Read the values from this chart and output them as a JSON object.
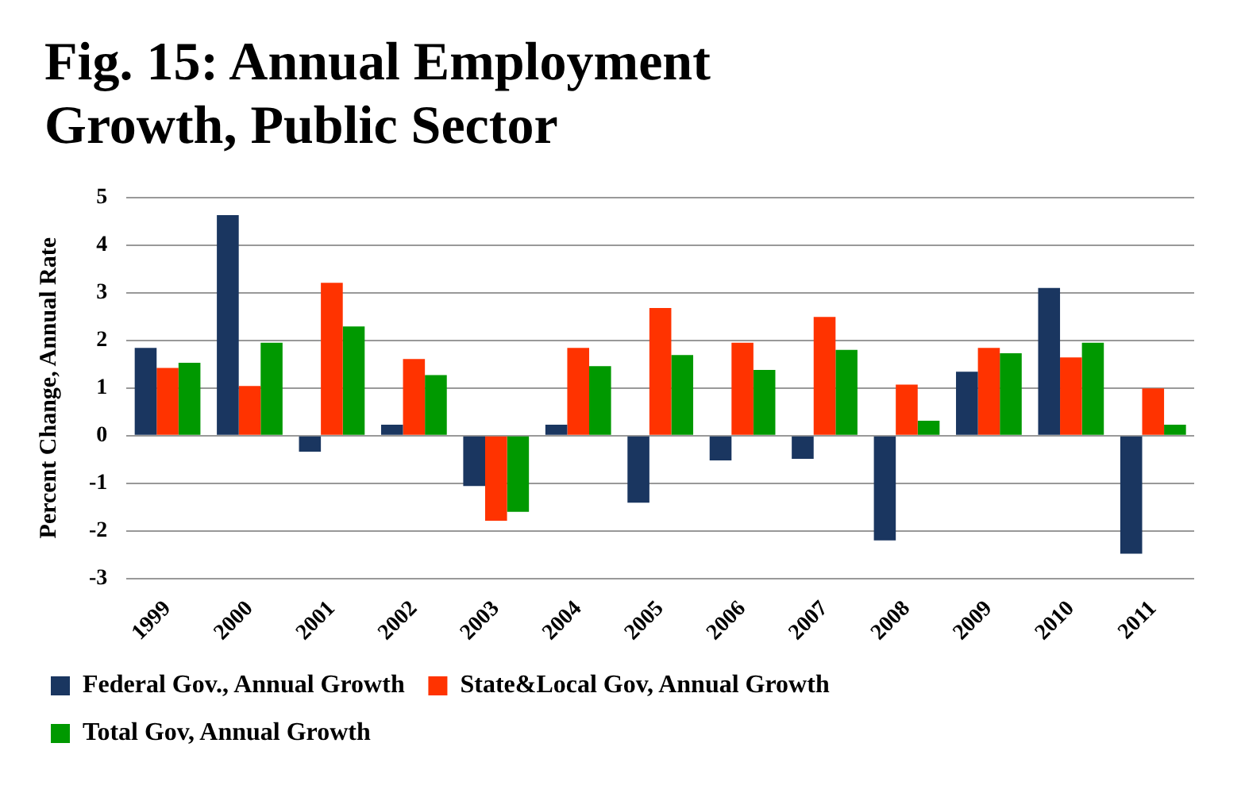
{
  "chart_data": {
    "type": "bar",
    "title": "Fig. 15: Annual Employment Growth, Public Sector",
    "ylabel": "Percent Change, Annual Rate",
    "categories": [
      "1999",
      "2000",
      "2001",
      "2002",
      "2003",
      "2004",
      "2005",
      "2006",
      "2007",
      "2008",
      "2009",
      "2010",
      "2011"
    ],
    "series": [
      {
        "name": "Federal Gov., Annual Growth",
        "color": "#1a3660",
        "values": [
          1.84,
          4.63,
          -0.34,
          0.23,
          -1.06,
          0.23,
          -1.41,
          -0.52,
          -0.49,
          -2.2,
          1.34,
          3.1,
          -2.48
        ]
      },
      {
        "name": "State&Local Gov, Annual Growth",
        "color": "#ff3300",
        "values": [
          1.42,
          1.04,
          3.21,
          1.61,
          -1.79,
          1.84,
          2.68,
          1.95,
          2.49,
          1.07,
          1.84,
          1.64,
          0.99
        ]
      },
      {
        "name": "Total Gov, Annual Growth",
        "color": "#009900",
        "values": [
          1.53,
          1.95,
          2.29,
          1.27,
          -1.6,
          1.46,
          1.69,
          1.38,
          1.8,
          0.31,
          1.73,
          1.95,
          0.23
        ]
      }
    ],
    "ylim": [
      -3,
      5
    ],
    "yticks": [
      -3,
      -2,
      -1,
      0,
      1,
      2,
      3,
      4,
      5
    ],
    "grid": "y",
    "legend": "bottom"
  }
}
